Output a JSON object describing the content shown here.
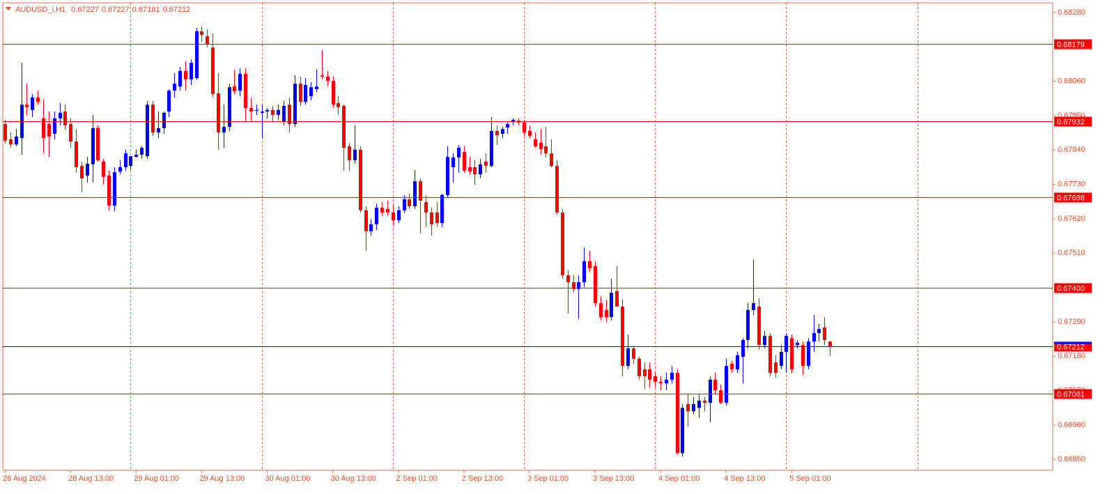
{
  "chart_data": {
    "type": "candlestick",
    "title": "AUDUSD_i,H1",
    "header_values": [
      0.67227,
      0.67227,
      0.67181,
      0.67212
    ],
    "up_color": "#0000ff",
    "down_color": "#ff0000",
    "separator_color": "#ec5a30",
    "xlim": [
      -0.4,
      191.8
    ],
    "xticks": [
      {
        "value": 0,
        "label": "28 Aug 2024"
      },
      {
        "value": 12,
        "label": "28 Aug 13:00"
      },
      {
        "value": 24,
        "label": "29 Aug 01:00"
      },
      {
        "value": 36,
        "label": "29 Aug 13:00"
      },
      {
        "value": 48,
        "label": "30 Aug 01:00"
      },
      {
        "value": 60,
        "label": "30 Aug 13:00"
      },
      {
        "value": 72,
        "label": "2 Sep 01:00"
      },
      {
        "value": 84,
        "label": "2 Sep 13:00"
      },
      {
        "value": 96,
        "label": "3 Sep 01:00"
      },
      {
        "value": 108,
        "label": "3 Sep 13:00"
      },
      {
        "value": 120,
        "label": "4 Sep 01:00"
      },
      {
        "value": 132,
        "label": "4 Sep 13:00"
      },
      {
        "value": 144,
        "label": "5 Sep 01:00"
      }
    ],
    "period_separators": [
      23,
      47,
      71,
      95,
      119,
      143,
      167
    ],
    "ylim": [
      0.66815,
      0.68311
    ],
    "yticks": [
      {
        "value": 0.6828,
        "label": "0.68280"
      },
      {
        "value": 0.6806,
        "label": "0.68060"
      },
      {
        "value": 0.6795,
        "label": "0.67950"
      },
      {
        "value": 0.6784,
        "label": "0.67840"
      },
      {
        "value": 0.6773,
        "label": "0.67730"
      },
      {
        "value": 0.6762,
        "label": "0.67620"
      },
      {
        "value": 0.6751,
        "label": "0.67510"
      },
      {
        "value": 0.6729,
        "label": "0.67290"
      },
      {
        "value": 0.6718,
        "label": "0.67180"
      },
      {
        "value": 0.6707,
        "label": "0.67070"
      },
      {
        "value": 0.6696,
        "label": "0.66960"
      },
      {
        "value": 0.6685,
        "label": "0.66850"
      }
    ],
    "grid": false,
    "levels": [
      {
        "value": 0.68179,
        "label": "0.68179",
        "color": "#ff0000"
      },
      {
        "value": 0.67932,
        "label": "0.67932",
        "color": "#ff0000"
      },
      {
        "value": 0.67688,
        "label": "0.67688",
        "color": "#ff0000"
      },
      {
        "value": 0.674,
        "label": "0.67400",
        "color": "#ff0000"
      },
      {
        "value": 0.67212,
        "label": "0.67212",
        "color": "#0000ff"
      },
      {
        "value": 0.67061,
        "label": "0.67061",
        "color": "#ff0000"
      }
    ],
    "ohlc": [
      [
        0.67923,
        0.67936,
        0.67861,
        0.6787
      ],
      [
        0.67874,
        0.67896,
        0.67847,
        0.67858
      ],
      [
        0.67858,
        0.67907,
        0.67852,
        0.67883
      ],
      [
        0.67878,
        0.68119,
        0.67825,
        0.67985
      ],
      [
        0.67985,
        0.68052,
        0.67952,
        0.67977
      ],
      [
        0.67968,
        0.68019,
        0.67945,
        0.68008
      ],
      [
        0.68008,
        0.6803,
        0.67985,
        0.67994
      ],
      [
        0.67941,
        0.68003,
        0.67829,
        0.67878
      ],
      [
        0.67923,
        0.67963,
        0.67816,
        0.67883
      ],
      [
        0.67892,
        0.67963,
        0.67874,
        0.67941
      ],
      [
        0.67941,
        0.6799,
        0.67919,
        0.67959
      ],
      [
        0.67963,
        0.67985,
        0.67905,
        0.67919
      ],
      [
        0.67923,
        0.67941,
        0.67847,
        0.67867
      ],
      [
        0.67867,
        0.67907,
        0.67767,
        0.67785
      ],
      [
        0.67789,
        0.67803,
        0.67705,
        0.67749
      ],
      [
        0.67758,
        0.67818,
        0.67736,
        0.67796
      ],
      [
        0.67794,
        0.67952,
        0.67736,
        0.6791
      ],
      [
        0.6791,
        0.67919,
        0.67803,
        0.67807
      ],
      [
        0.67803,
        0.67812,
        0.67729,
        0.67754
      ],
      [
        0.67758,
        0.67774,
        0.67647,
        0.67662
      ],
      [
        0.67662,
        0.67785,
        0.67644,
        0.67769
      ],
      [
        0.67771,
        0.67807,
        0.67762,
        0.67785
      ],
      [
        0.67785,
        0.67841,
        0.67774,
        0.67829
      ],
      [
        0.67789,
        0.67818,
        0.67776,
        0.6782
      ],
      [
        0.67818,
        0.67841,
        0.67816,
        0.67825
      ],
      [
        0.67825,
        0.67852,
        0.67812,
        0.67847
      ],
      [
        0.6782,
        0.67997,
        0.67812,
        0.67985
      ],
      [
        0.67985,
        0.67997,
        0.67885,
        0.67896
      ],
      [
        0.67896,
        0.67963,
        0.67878,
        0.6791
      ],
      [
        0.6791,
        0.67963,
        0.67892,
        0.67959
      ],
      [
        0.67963,
        0.68035,
        0.67945,
        0.6803
      ],
      [
        0.6803,
        0.68086,
        0.68008,
        0.68052
      ],
      [
        0.68043,
        0.68106,
        0.6803,
        0.68093
      ],
      [
        0.68093,
        0.68124,
        0.6803,
        0.68066
      ],
      [
        0.68066,
        0.6813,
        0.68048,
        0.68119
      ],
      [
        0.6807,
        0.68231,
        0.68064,
        0.6822
      ],
      [
        0.6822,
        0.68235,
        0.68186,
        0.68208
      ],
      [
        0.68204,
        0.68226,
        0.68168,
        0.68177
      ],
      [
        0.68168,
        0.68213,
        0.68008,
        0.68019
      ],
      [
        0.68021,
        0.68086,
        0.67841,
        0.67896
      ],
      [
        0.67896,
        0.67985,
        0.67847,
        0.67914
      ],
      [
        0.67914,
        0.68052,
        0.67901,
        0.68041
      ],
      [
        0.68043,
        0.68097,
        0.68019,
        0.68028
      ],
      [
        0.6803,
        0.68101,
        0.68012,
        0.68084
      ],
      [
        0.68084,
        0.68101,
        0.6793,
        0.67974
      ],
      [
        0.67974,
        0.68008,
        0.6793,
        0.67963
      ],
      [
        0.67965,
        0.67985,
        0.67952,
        0.67968
      ],
      [
        0.67959,
        0.67985,
        0.67878,
        0.67963
      ],
      [
        0.67963,
        0.67974,
        0.67941,
        0.67968
      ],
      [
        0.67968,
        0.67981,
        0.67928,
        0.67952
      ],
      [
        0.67952,
        0.67985,
        0.67936,
        0.67968
      ],
      [
        0.6793,
        0.67997,
        0.67919,
        0.67981
      ],
      [
        0.67985,
        0.68008,
        0.67896,
        0.67923
      ],
      [
        0.67923,
        0.68079,
        0.67914,
        0.68052
      ],
      [
        0.68052,
        0.68075,
        0.67981,
        0.67994
      ],
      [
        0.67994,
        0.6807,
        0.67985,
        0.68048
      ],
      [
        0.68012,
        0.68057,
        0.67999,
        0.68041
      ],
      [
        0.68035,
        0.68097,
        0.68026,
        0.68043
      ],
      [
        0.68079,
        0.68159,
        0.68066,
        0.68075
      ],
      [
        0.68075,
        0.68093,
        0.68043,
        0.68061
      ],
      [
        0.68061,
        0.68075,
        0.67974,
        0.67985
      ],
      [
        0.6799,
        0.68012,
        0.67952,
        0.67977
      ],
      [
        0.67981,
        0.67985,
        0.67774,
        0.67847
      ],
      [
        0.67852,
        0.67863,
        0.67774,
        0.67807
      ],
      [
        0.67807,
        0.67919,
        0.67796,
        0.67841
      ],
      [
        0.67841,
        0.67852,
        0.6764,
        0.67647
      ],
      [
        0.67647,
        0.6766,
        0.67517,
        0.6758
      ],
      [
        0.6758,
        0.67618,
        0.67566,
        0.67602
      ],
      [
        0.67602,
        0.67669,
        0.67584,
        0.67655
      ],
      [
        0.67655,
        0.67673,
        0.67629,
        0.6764
      ],
      [
        0.67651,
        0.67678,
        0.67629,
        0.6764
      ],
      [
        0.6764,
        0.67662,
        0.67602,
        0.67615
      ],
      [
        0.67615,
        0.6766,
        0.67606,
        0.67647
      ],
      [
        0.67647,
        0.67696,
        0.67638,
        0.67682
      ],
      [
        0.67682,
        0.677,
        0.67651,
        0.6766
      ],
      [
        0.6766,
        0.67776,
        0.67651,
        0.6774
      ],
      [
        0.6774,
        0.67749,
        0.67573,
        0.67678
      ],
      [
        0.67673,
        0.67696,
        0.67595,
        0.6764
      ],
      [
        0.6764,
        0.67655,
        0.67566,
        0.67602
      ],
      [
        0.6764,
        0.67673,
        0.67595,
        0.67606
      ],
      [
        0.67606,
        0.677,
        0.67593,
        0.67696
      ],
      [
        0.67696,
        0.67852,
        0.67687,
        0.67818
      ],
      [
        0.67785,
        0.67829,
        0.67736,
        0.67816
      ],
      [
        0.67816,
        0.67856,
        0.67767,
        0.67847
      ],
      [
        0.67834,
        0.67852,
        0.67767,
        0.67774
      ],
      [
        0.67785,
        0.67818,
        0.67762,
        0.67771
      ],
      [
        0.67785,
        0.67807,
        0.67729,
        0.67762
      ],
      [
        0.67762,
        0.67812,
        0.67749,
        0.67794
      ],
      [
        0.67803,
        0.67829,
        0.67767,
        0.67789
      ],
      [
        0.67789,
        0.67945,
        0.67785,
        0.67901
      ],
      [
        0.67901,
        0.67919,
        0.67856,
        0.67887
      ],
      [
        0.67892,
        0.67914,
        0.67878,
        0.67907
      ],
      [
        0.67912,
        0.67928,
        0.67892,
        0.67923
      ],
      [
        0.6793,
        0.67941,
        0.67919,
        0.67936
      ],
      [
        0.67934,
        0.67941,
        0.67919,
        0.67928
      ],
      [
        0.67928,
        0.67936,
        0.67885,
        0.67896
      ],
      [
        0.67901,
        0.67919,
        0.67878,
        0.67885
      ],
      [
        0.67874,
        0.67896,
        0.67847,
        0.67852
      ],
      [
        0.67863,
        0.67907,
        0.67825,
        0.67843
      ],
      [
        0.67852,
        0.67914,
        0.67816,
        0.67829
      ],
      [
        0.67829,
        0.67874,
        0.67785,
        0.67789
      ],
      [
        0.67789,
        0.67807,
        0.67633,
        0.6764
      ],
      [
        0.6764,
        0.67651,
        0.67428,
        0.67439
      ],
      [
        0.67439,
        0.67455,
        0.67316,
        0.67417
      ],
      [
        0.67417,
        0.67439,
        0.67383,
        0.67395
      ],
      [
        0.67395,
        0.67439,
        0.67299,
        0.67417
      ],
      [
        0.67417,
        0.67528,
        0.67401,
        0.67484
      ],
      [
        0.67484,
        0.67517,
        0.6745,
        0.67461
      ],
      [
        0.67468,
        0.67484,
        0.67339,
        0.6735
      ],
      [
        0.6735,
        0.67372,
        0.67294,
        0.67305
      ],
      [
        0.67328,
        0.67361,
        0.6729,
        0.67305
      ],
      [
        0.67305,
        0.67428,
        0.67294,
        0.67383
      ],
      [
        0.67388,
        0.67468,
        0.67339,
        0.67339
      ],
      [
        0.67339,
        0.67361,
        0.67116,
        0.67149
      ],
      [
        0.67149,
        0.6725,
        0.67138,
        0.67205
      ],
      [
        0.67205,
        0.67209,
        0.67156,
        0.67172
      ],
      [
        0.67172,
        0.67178,
        0.67105,
        0.67116
      ],
      [
        0.67138,
        0.6716,
        0.67076,
        0.67116
      ],
      [
        0.67138,
        0.6716,
        0.6708,
        0.67105
      ],
      [
        0.67116,
        0.67127,
        0.67082,
        0.67098
      ],
      [
        0.67098,
        0.67116,
        0.67071,
        0.67093
      ],
      [
        0.67093,
        0.67127,
        0.67071,
        0.67105
      ],
      [
        0.67105,
        0.67149,
        0.67093,
        0.67127
      ],
      [
        0.67127,
        0.67138,
        0.66866,
        0.6687
      ],
      [
        0.6687,
        0.67027,
        0.66859,
        0.67015
      ],
      [
        0.67027,
        0.6706,
        0.66955,
        0.67004
      ],
      [
        0.67004,
        0.67049,
        0.66993,
        0.67027
      ],
      [
        0.67015,
        0.6706,
        0.66982,
        0.67038
      ],
      [
        0.67038,
        0.67049,
        0.67004,
        0.67031
      ],
      [
        0.67031,
        0.67116,
        0.66969,
        0.67105
      ],
      [
        0.67105,
        0.67127,
        0.6706,
        0.67071
      ],
      [
        0.67071,
        0.67089,
        0.67027,
        0.67031
      ],
      [
        0.67031,
        0.67172,
        0.67022,
        0.67149
      ],
      [
        0.67156,
        0.67165,
        0.67127,
        0.67138
      ],
      [
        0.67138,
        0.67194,
        0.67127,
        0.67183
      ],
      [
        0.67178,
        0.67238,
        0.67093,
        0.67232
      ],
      [
        0.67232,
        0.6735,
        0.67205,
        0.67328
      ],
      [
        0.67328,
        0.6749,
        0.67312,
        0.6735
      ],
      [
        0.67339,
        0.67366,
        0.67201,
        0.67216
      ],
      [
        0.67216,
        0.67261,
        0.67205,
        0.67245
      ],
      [
        0.67245,
        0.67254,
        0.67116,
        0.67127
      ],
      [
        0.6716,
        0.67183,
        0.67111,
        0.67127
      ],
      [
        0.67149,
        0.67216,
        0.67138,
        0.67194
      ],
      [
        0.67194,
        0.67254,
        0.67127,
        0.67245
      ],
      [
        0.67238,
        0.6725,
        0.67125,
        0.67138
      ],
      [
        0.67216,
        0.67232,
        0.67205,
        0.67223
      ],
      [
        0.67216,
        0.67227,
        0.6712,
        0.67149
      ],
      [
        0.67149,
        0.67238,
        0.67138,
        0.67227
      ],
      [
        0.67227,
        0.67312,
        0.67194,
        0.67254
      ],
      [
        0.67254,
        0.67283,
        0.67227,
        0.67267
      ],
      [
        0.67272,
        0.67305,
        0.67216,
        0.67232
      ],
      [
        0.67227,
        0.67227,
        0.67181,
        0.67212
      ]
    ]
  }
}
